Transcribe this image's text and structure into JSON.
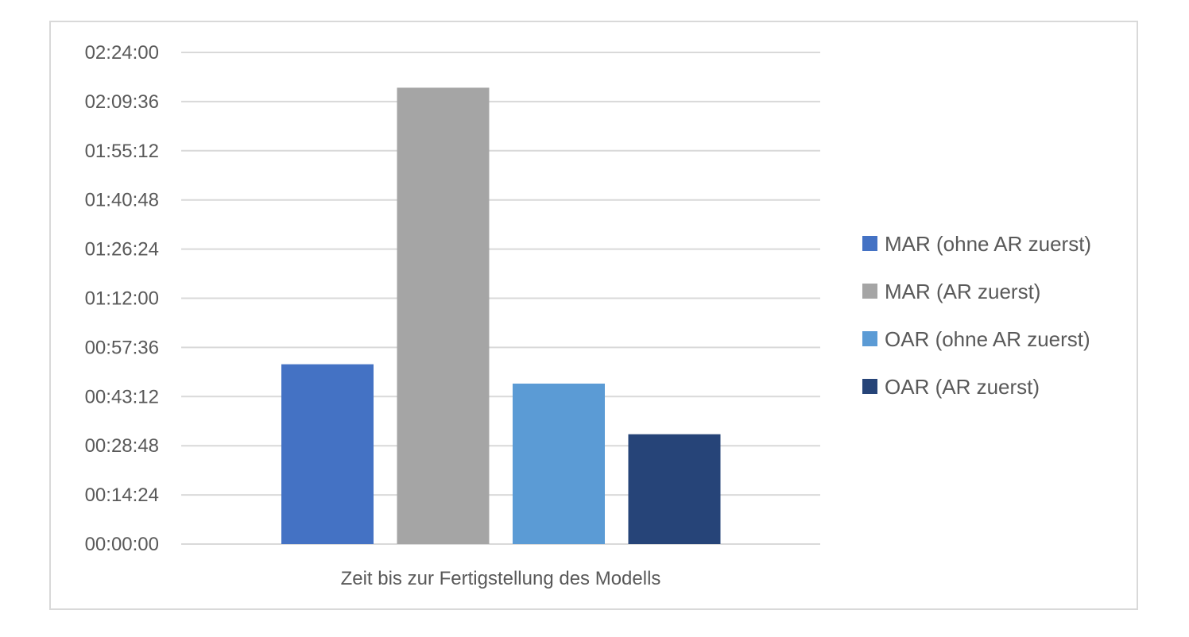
{
  "chart_data": {
    "type": "bar",
    "categories": [
      "Zeit bis zur Fertigstellung des Modells"
    ],
    "y_ticks": [
      "00:00:00",
      "00:14:24",
      "00:28:48",
      "00:43:12",
      "00:57:36",
      "01:12:00",
      "01:26:24",
      "01:40:48",
      "01:55:12",
      "02:09:36",
      "02:24:00"
    ],
    "ylim_seconds": [
      0,
      8640
    ],
    "series": [
      {
        "name": "MAR (ohne AR zuerst)",
        "value_seconds": 3160,
        "color": "#4472C4"
      },
      {
        "name": "MAR (AR zuerst)",
        "value_seconds": 8020,
        "color": "#A5A5A5"
      },
      {
        "name": "OAR (ohne AR zuerst)",
        "value_seconds": 2820,
        "color": "#5B9BD5"
      },
      {
        "name": "OAR (AR zuerst)",
        "value_seconds": 1930,
        "color": "#264478"
      }
    ],
    "grid": true,
    "legend_position": "right"
  }
}
